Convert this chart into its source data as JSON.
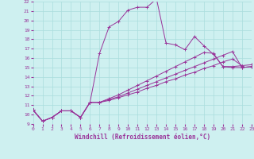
{
  "xlabel": "Windchill (Refroidissement éolien,°C)",
  "xlim": [
    0,
    23
  ],
  "ylim": [
    9,
    22
  ],
  "xticks": [
    0,
    1,
    2,
    3,
    4,
    5,
    6,
    7,
    8,
    9,
    10,
    11,
    12,
    13,
    14,
    15,
    16,
    17,
    18,
    19,
    20,
    21,
    22,
    23
  ],
  "yticks": [
    9,
    10,
    11,
    12,
    13,
    14,
    15,
    16,
    17,
    18,
    19,
    20,
    21,
    22
  ],
  "bg_color": "#cef0f0",
  "line_color": "#993399",
  "grid_color": "#aadddd",
  "series": [
    {
      "x": [
        0,
        1,
        2,
        3,
        4,
        5,
        6,
        7,
        8,
        9,
        10,
        11,
        12,
        13,
        14,
        15,
        16,
        17,
        18,
        19,
        20,
        21,
        22
      ],
      "y": [
        10.5,
        9.3,
        9.7,
        10.4,
        10.4,
        9.7,
        11.3,
        16.5,
        19.3,
        19.9,
        21.1,
        21.4,
        21.4,
        22.3,
        17.6,
        17.4,
        16.9,
        18.3,
        17.3,
        16.4,
        15.1,
        15.1,
        15.2
      ]
    },
    {
      "x": [
        0,
        1,
        2,
        3,
        4,
        5,
        6,
        7,
        8,
        9,
        10,
        11,
        12,
        13,
        14,
        15,
        16,
        17,
        18,
        19,
        20,
        21,
        22,
        23
      ],
      "y": [
        10.5,
        9.3,
        9.7,
        10.4,
        10.4,
        9.7,
        11.3,
        11.3,
        11.5,
        11.8,
        12.1,
        12.4,
        12.8,
        13.1,
        13.5,
        13.8,
        14.2,
        14.5,
        14.9,
        15.2,
        15.6,
        15.9,
        15.2,
        15.3
      ]
    },
    {
      "x": [
        0,
        1,
        2,
        3,
        4,
        5,
        6,
        7,
        8,
        9,
        10,
        11,
        12,
        13,
        14,
        15,
        16,
        17,
        18,
        19,
        20,
        21,
        22,
        23
      ],
      "y": [
        10.5,
        9.3,
        9.7,
        10.4,
        10.4,
        9.7,
        11.3,
        11.3,
        11.6,
        11.9,
        12.3,
        12.7,
        13.1,
        13.5,
        13.9,
        14.3,
        14.7,
        15.1,
        15.5,
        15.9,
        16.3,
        16.7,
        15.0,
        15.1
      ]
    },
    {
      "x": [
        0,
        1,
        2,
        3,
        4,
        5,
        6,
        7,
        8,
        9,
        10,
        11,
        12,
        13,
        14,
        15,
        16,
        17,
        18,
        19,
        20,
        21,
        22,
        23
      ],
      "y": [
        10.5,
        9.3,
        9.7,
        10.4,
        10.4,
        9.7,
        11.3,
        11.3,
        11.7,
        12.1,
        12.6,
        13.1,
        13.6,
        14.1,
        14.6,
        15.1,
        15.6,
        16.1,
        16.6,
        16.5,
        15.1,
        15.0,
        15.0,
        15.1
      ]
    }
  ]
}
